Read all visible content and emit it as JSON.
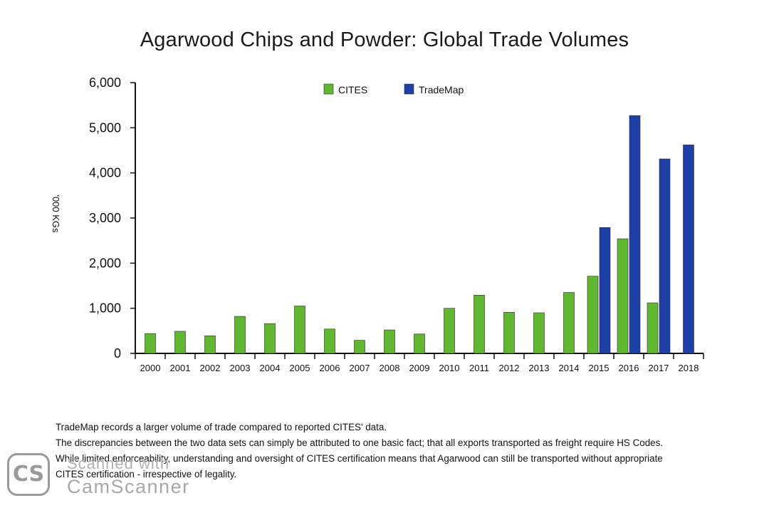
{
  "chart_data": {
    "type": "bar",
    "title": "Agarwood Chips and Powder: Global Trade Volumes",
    "xlabel": "",
    "ylabel": "'000 KGs",
    "ylim": [
      0,
      6000
    ],
    "yticks": [
      "0",
      "1,000",
      "2,000",
      "3,000",
      "4,000",
      "5,000",
      "6,000"
    ],
    "ytick_values": [
      0,
      1000,
      2000,
      3000,
      4000,
      5000,
      6000
    ],
    "categories": [
      "2000",
      "2001",
      "2002",
      "2003",
      "2004",
      "2005",
      "2006",
      "2007",
      "2008",
      "2009",
      "2010",
      "2011",
      "2012",
      "2013",
      "2014",
      "2015",
      "2016",
      "2017",
      "2018"
    ],
    "series": [
      {
        "name": "CITES",
        "color": "#5fb82e",
        "values": [
          440,
          490,
          390,
          820,
          660,
          1050,
          540,
          290,
          520,
          430,
          1000,
          1290,
          910,
          900,
          1350,
          1710,
          2540,
          1120,
          null
        ]
      },
      {
        "name": "TradeMap",
        "color": "#1f3fa8",
        "values": [
          null,
          null,
          null,
          null,
          null,
          null,
          null,
          null,
          null,
          null,
          null,
          null,
          null,
          null,
          null,
          2790,
          5270,
          4310,
          4620
        ]
      }
    ],
    "legend_position": "top-center",
    "grid": false
  },
  "footnote": {
    "lines": [
      "TradeMap records a larger volume of trade compared to reported CITES' data.",
      "The discrepancies between the two data sets can simply be attributed to one basic fact; that all exports transported as freight require HS Codes.",
      "While limited enforceability, understanding and oversight of CITES certification means that Agarwood can still be transported without appropriate",
      "CITES certification - irrespective of legality."
    ]
  },
  "watermark": {
    "badge": "CS",
    "line1": "Scanned with",
    "line2": "CamScanner"
  }
}
